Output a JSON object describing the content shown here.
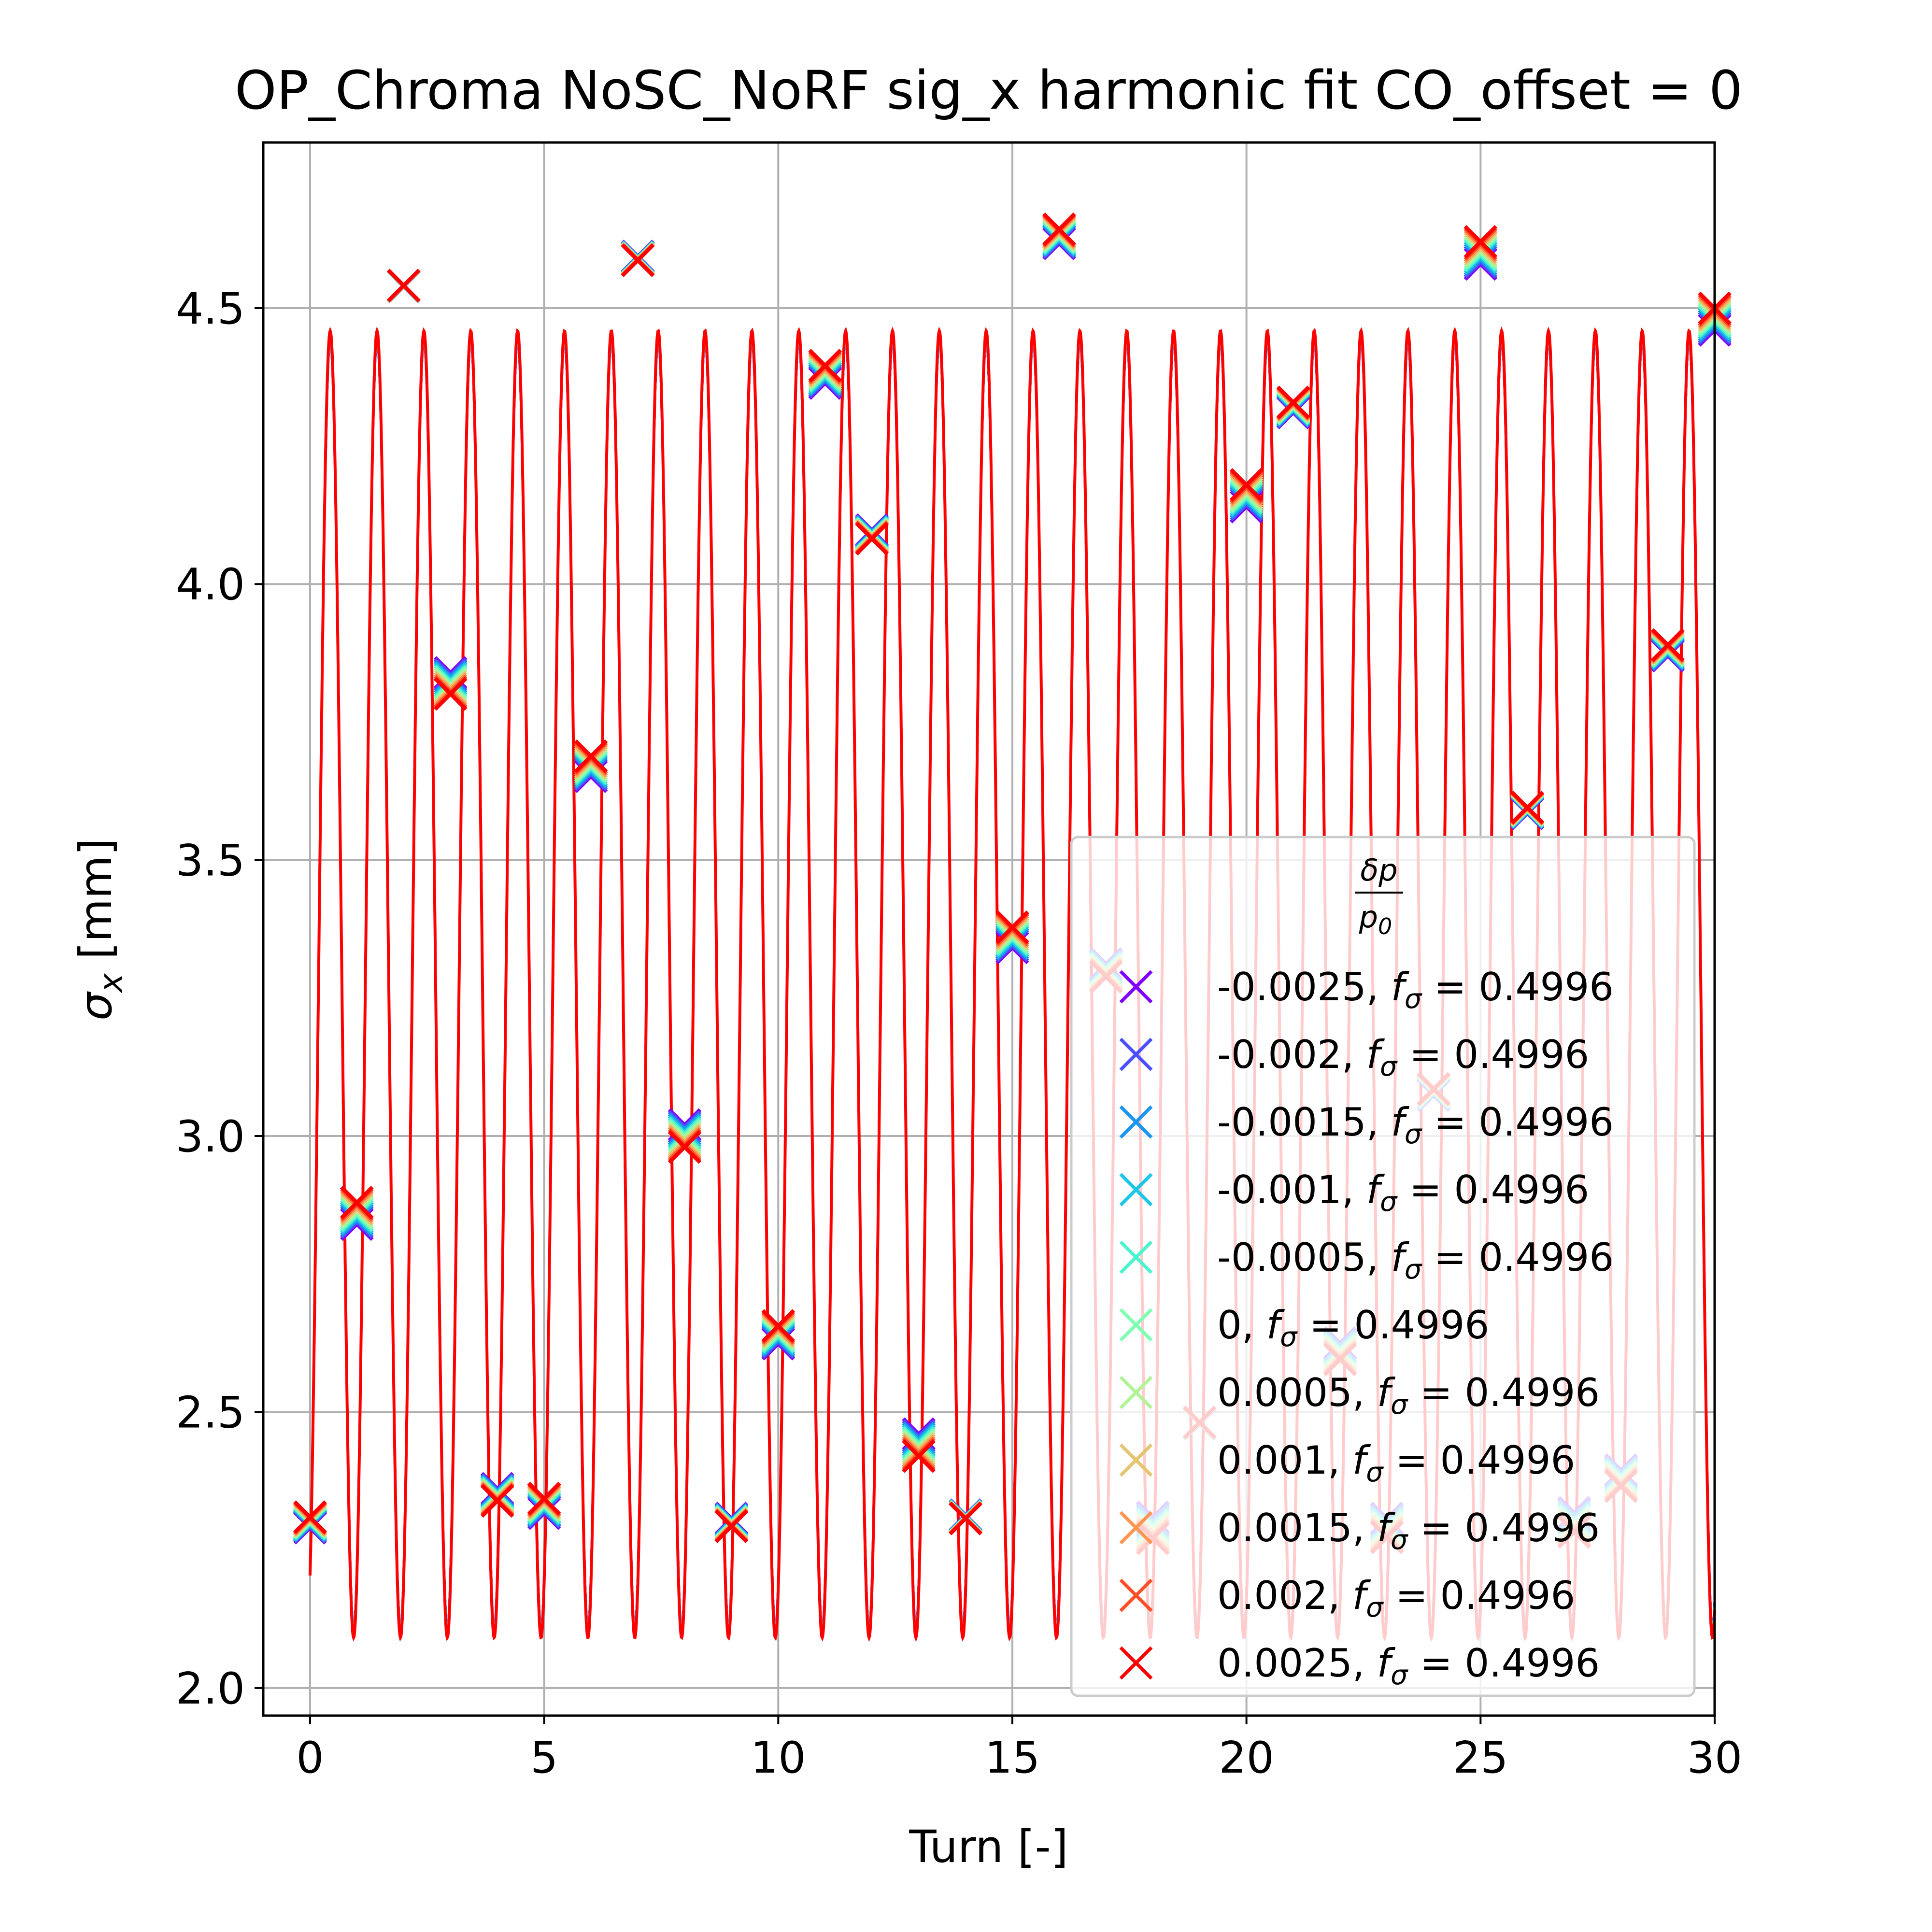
{
  "chart_data": {
    "type": "scatter",
    "title": "OP_Chroma NoSC_NoRF sig_x harmonic fit CO_offset = 0",
    "xlabel": "Turn [-]",
    "ylabel": "σx [mm]",
    "ylabel_main": "σ",
    "ylabel_sub": "x",
    "ylabel_unit": " [mm]",
    "xlim": [
      -1,
      30
    ],
    "ylim": [
      1.95,
      4.8
    ],
    "xticks": [
      0,
      5,
      10,
      15,
      20,
      25,
      30
    ],
    "xtick_labels": [
      "0",
      "5",
      "10",
      "15",
      "20",
      "25",
      "30"
    ],
    "yticks": [
      2.0,
      2.5,
      3.0,
      3.5,
      4.0,
      4.5
    ],
    "ytick_labels": [
      "2.0",
      "2.5",
      "3.0",
      "3.5",
      "4.0",
      "4.5"
    ],
    "grid": true,
    "legend_position": "lower-right",
    "legend_title_num": "δp",
    "legend_title_den": "p",
    "legend_title_den_sub": "0",
    "x": [
      0,
      1,
      2,
      3,
      4,
      5,
      6,
      7,
      8,
      9,
      10,
      11,
      12,
      13,
      14,
      15,
      16,
      17,
      18,
      19,
      20,
      21,
      22,
      23,
      24,
      25,
      26,
      27,
      28,
      29,
      30
    ],
    "values": [
      2.3,
      2.86,
      4.54,
      3.82,
      2.35,
      2.33,
      3.67,
      4.59,
      3.0,
      2.3,
      2.64,
      4.38,
      4.09,
      2.44,
      2.31,
      3.36,
      4.63,
      3.3,
      2.29,
      2.48,
      4.16,
      4.32,
      2.61,
      2.29,
      3.08,
      4.6,
      3.59,
      2.3,
      2.38,
      3.88,
      4.48
    ],
    "series": [
      {
        "name": "-0.0025",
        "f_sigma": "0.4996",
        "color": "#8000ff"
      },
      {
        "name": "-0.002",
        "f_sigma": "0.4996",
        "color": "#4c50fc"
      },
      {
        "name": "-0.0015",
        "f_sigma": "0.4996",
        "color": "#1996f3"
      },
      {
        "name": "-0.001",
        "f_sigma": "0.4996",
        "color": "#1cc6e5"
      },
      {
        "name": "-0.0005",
        "f_sigma": "0.4996",
        "color": "#4df3ce"
      },
      {
        "name": "0",
        "f_sigma": "0.4996",
        "color": "#80ffb4"
      },
      {
        "name": "0.0005",
        "f_sigma": "0.4996",
        "color": "#b2f396"
      },
      {
        "name": "0.001",
        "f_sigma": "0.4996",
        "color": "#e6c572"
      },
      {
        "name": "0.0015",
        "f_sigma": "0.4996",
        "color": "#ff964f"
      },
      {
        "name": "0.002",
        "f_sigma": "0.4996",
        "color": "#ff4f28"
      },
      {
        "name": "0.0025",
        "f_sigma": "0.4996",
        "color": "#ff0000"
      }
    ],
    "fit": {
      "description": "harmonic fit per series (overlapping curves)",
      "offset": 3.275,
      "amplitude": 1.175,
      "frequency": 0.4996,
      "phase_deg": 90,
      "color": "#ff0000"
    }
  }
}
